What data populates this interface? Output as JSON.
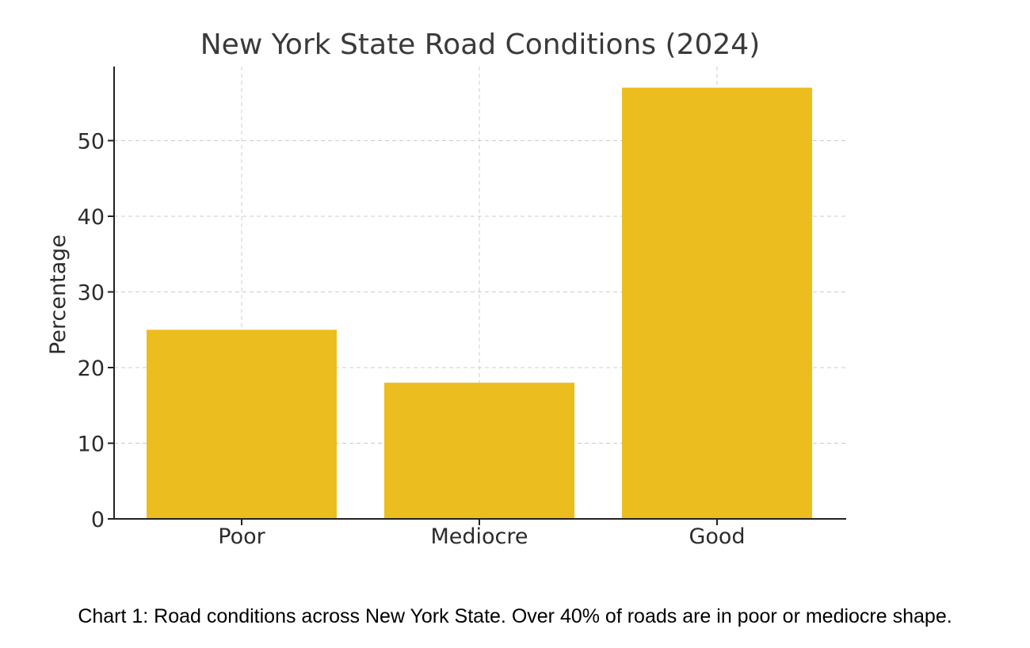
{
  "chart_data": {
    "type": "bar",
    "title": "New York State Road Conditions (2024)",
    "xlabel": "",
    "ylabel": "Percentage",
    "categories": [
      "Poor",
      "Mediocre",
      "Good"
    ],
    "values": [
      25,
      18,
      57
    ],
    "ylim": [
      0,
      60
    ],
    "yticks": [
      0,
      10,
      20,
      30,
      40,
      50
    ],
    "grid": true,
    "bar_color": "#EBBD1F"
  },
  "caption": "Chart 1: Road conditions across New York State. Over 40% of roads are in poor or mediocre shape."
}
